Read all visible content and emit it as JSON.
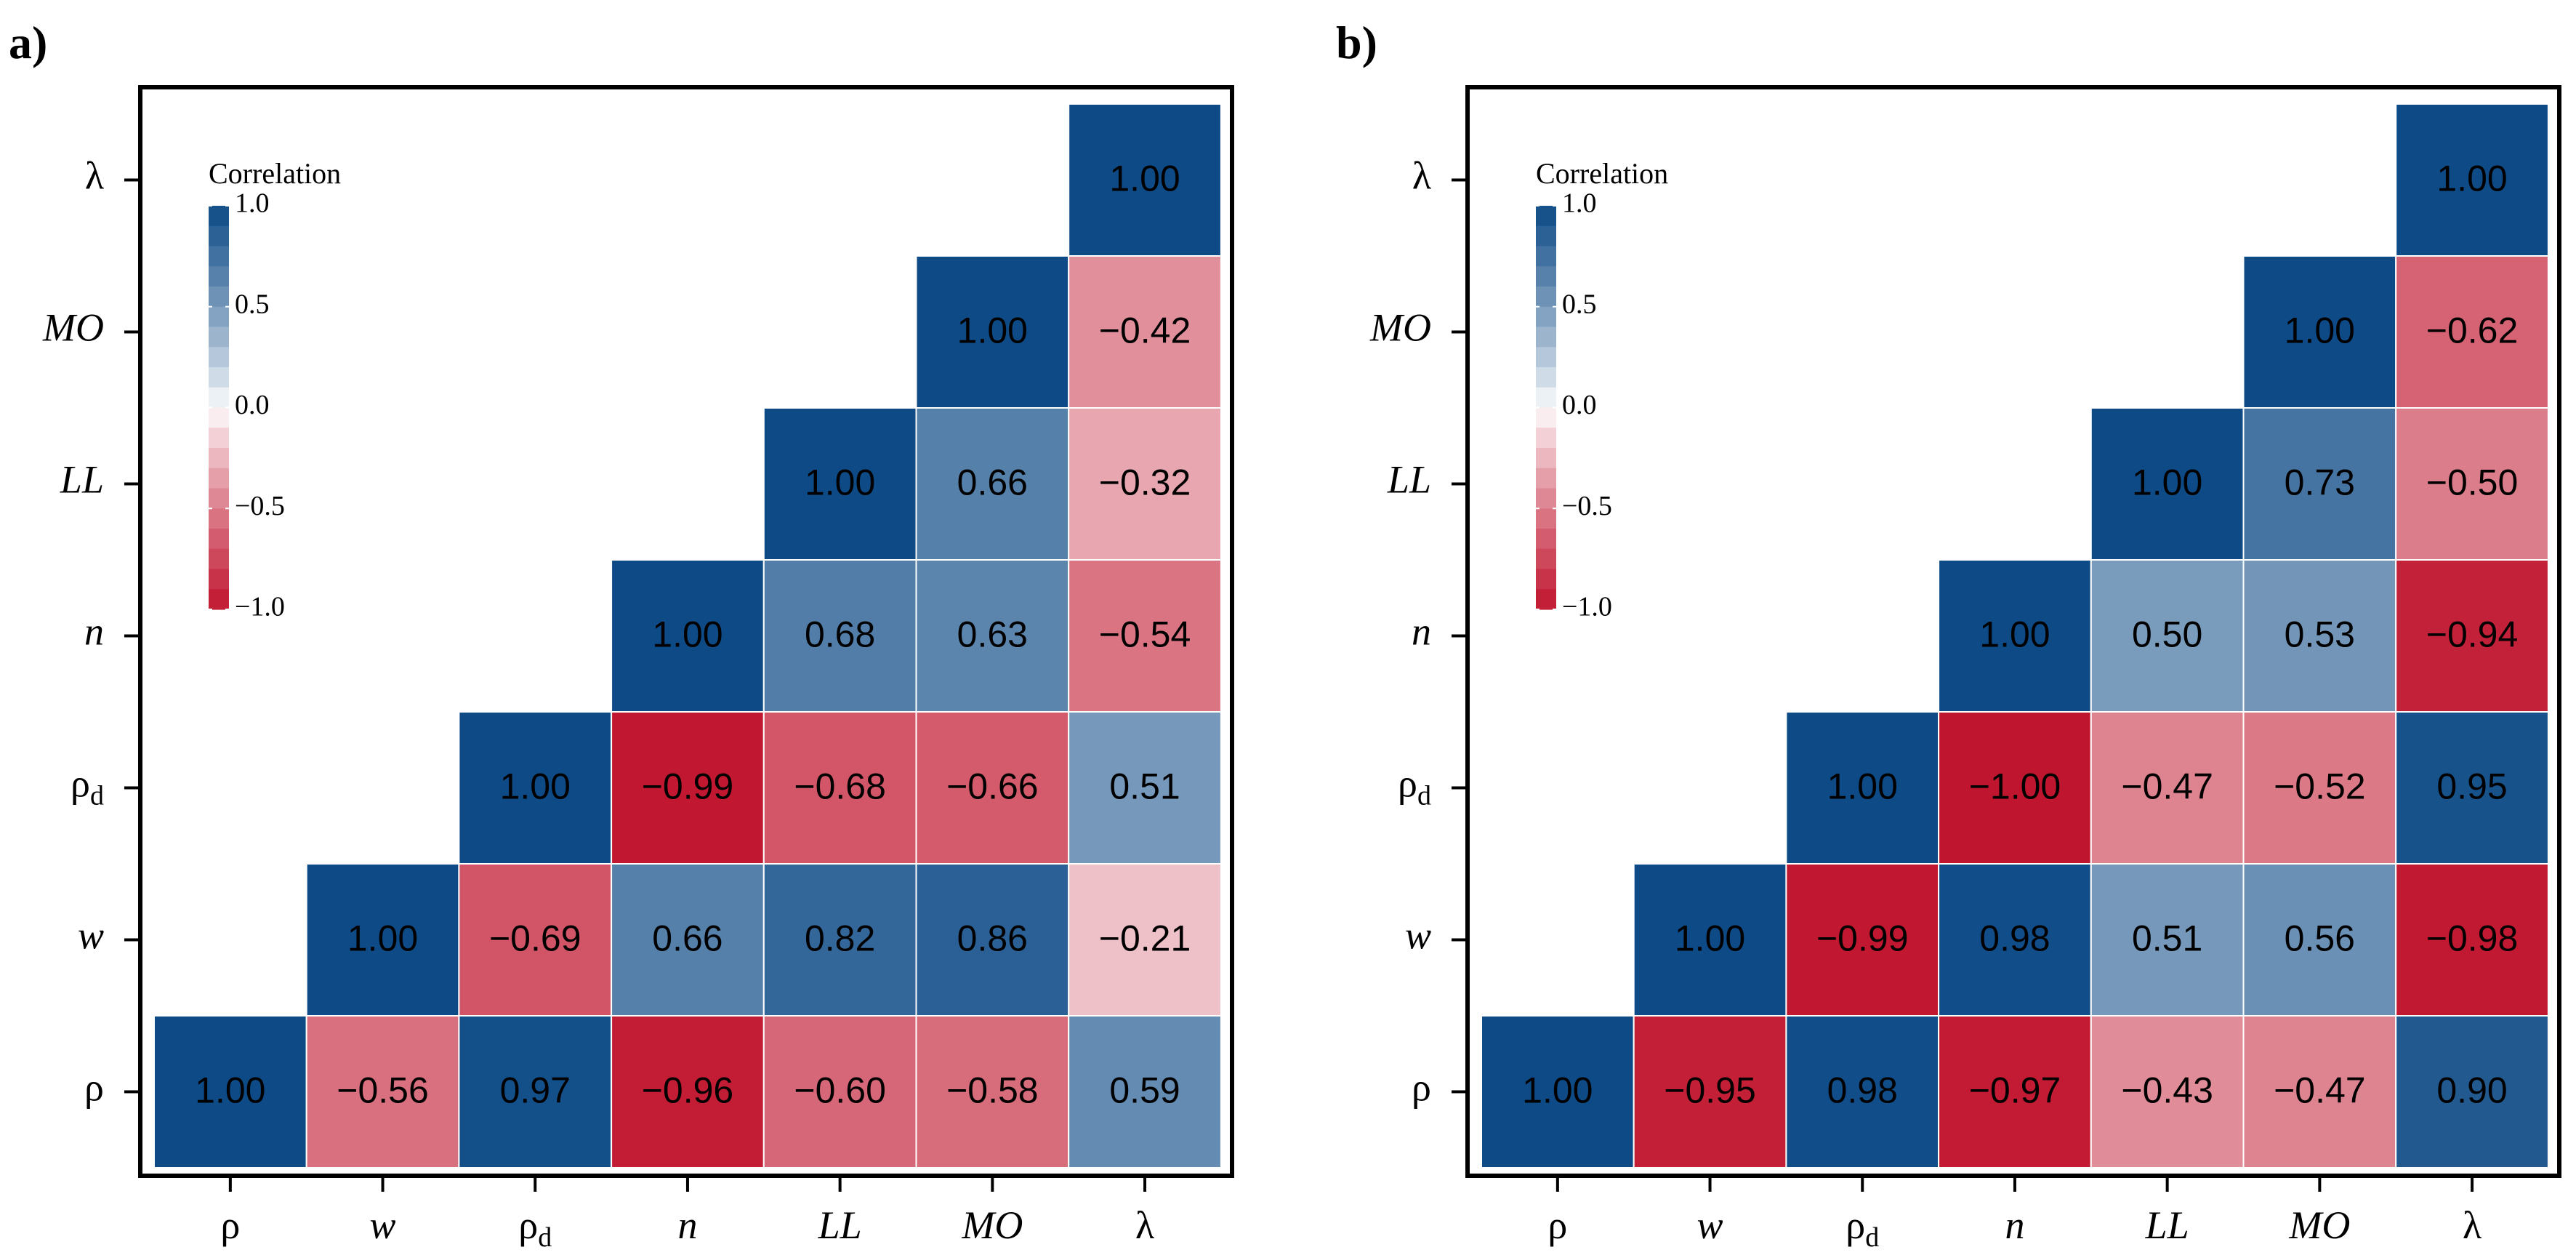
{
  "chart_data": [
    {
      "type": "heatmap",
      "panel_label": "a)",
      "title": "",
      "variables": [
        {
          "symbol": "ρ",
          "sub": "",
          "italic": false
        },
        {
          "symbol": "w",
          "sub": "",
          "italic": true
        },
        {
          "symbol": "ρ",
          "sub": "d",
          "italic": false
        },
        {
          "symbol": "n",
          "sub": "",
          "italic": true
        },
        {
          "symbol": "LL",
          "sub": "",
          "italic": true
        },
        {
          "symbol": "MO",
          "sub": "",
          "italic": true
        },
        {
          "symbol": "λ",
          "sub": "",
          "italic": false
        }
      ],
      "matrix": [
        [
          1.0,
          -0.56,
          0.97,
          -0.96,
          -0.6,
          -0.58,
          0.59
        ],
        [
          null,
          1.0,
          -0.69,
          0.66,
          0.82,
          0.86,
          -0.21
        ],
        [
          null,
          null,
          1.0,
          -0.99,
          -0.68,
          -0.66,
          0.51
        ],
        [
          null,
          null,
          null,
          1.0,
          0.68,
          0.63,
          -0.54
        ],
        [
          null,
          null,
          null,
          null,
          1.0,
          0.66,
          -0.32
        ],
        [
          null,
          null,
          null,
          null,
          null,
          1.0,
          -0.42
        ],
        [
          null,
          null,
          null,
          null,
          null,
          null,
          1.0
        ]
      ],
      "labels": [
        [
          "1.00",
          "−0.56",
          "0.97",
          "−0.96",
          "−0.60",
          "−0.58",
          "0.59"
        ],
        [
          null,
          "1.00",
          "−0.69",
          "0.66",
          "0.82",
          "0.86",
          "−0.21"
        ],
        [
          null,
          null,
          "1.00",
          "−0.99",
          "−0.68",
          "−0.66",
          "0.51"
        ],
        [
          null,
          null,
          null,
          "1.00",
          "0.68",
          "0.63",
          "−0.54"
        ],
        [
          null,
          null,
          null,
          null,
          "1.00",
          "0.66",
          "−0.32"
        ],
        [
          null,
          null,
          null,
          null,
          null,
          "1.00",
          "−0.42"
        ],
        [
          null,
          null,
          null,
          null,
          null,
          null,
          "1.00"
        ]
      ],
      "legend": {
        "title": "Correlation",
        "ticks": [
          "1.0",
          "0.5",
          "0.0",
          "−0.5",
          "−1.0"
        ],
        "tick_values": [
          1.0,
          0.5,
          0.0,
          -0.5,
          -1.0
        ],
        "range": [
          -1,
          1
        ],
        "placement": "top-left"
      }
    },
    {
      "type": "heatmap",
      "panel_label": "b)",
      "title": "",
      "variables": [
        {
          "symbol": "ρ",
          "sub": "",
          "italic": false
        },
        {
          "symbol": "w",
          "sub": "",
          "italic": true
        },
        {
          "symbol": "ρ",
          "sub": "d",
          "italic": false
        },
        {
          "symbol": "n",
          "sub": "",
          "italic": true
        },
        {
          "symbol": "LL",
          "sub": "",
          "italic": true
        },
        {
          "symbol": "MO",
          "sub": "",
          "italic": true
        },
        {
          "symbol": "λ",
          "sub": "",
          "italic": false
        }
      ],
      "matrix": [
        [
          1.0,
          -0.95,
          0.98,
          -0.97,
          -0.43,
          -0.47,
          0.9
        ],
        [
          null,
          1.0,
          -0.99,
          0.98,
          0.51,
          0.56,
          -0.98
        ],
        [
          null,
          null,
          1.0,
          -1.0,
          -0.47,
          -0.52,
          0.95
        ],
        [
          null,
          null,
          null,
          1.0,
          0.5,
          0.53,
          -0.94
        ],
        [
          null,
          null,
          null,
          null,
          1.0,
          0.73,
          -0.5
        ],
        [
          null,
          null,
          null,
          null,
          null,
          1.0,
          -0.62
        ],
        [
          null,
          null,
          null,
          null,
          null,
          null,
          1.0
        ]
      ],
      "labels": [
        [
          "1.00",
          "−0.95",
          "0.98",
          "−0.97",
          "−0.43",
          "−0.47",
          "0.90"
        ],
        [
          null,
          "1.00",
          "−0.99",
          "0.98",
          "0.51",
          "0.56",
          "−0.98"
        ],
        [
          null,
          null,
          "1.00",
          "−1.00",
          "−0.47",
          "−0.52",
          "0.95"
        ],
        [
          null,
          null,
          null,
          "1.00",
          "0.50",
          "0.53",
          "−0.94"
        ],
        [
          null,
          null,
          null,
          null,
          "1.00",
          "0.73",
          "−0.50"
        ],
        [
          null,
          null,
          null,
          null,
          null,
          "1.00",
          "−0.62"
        ],
        [
          null,
          null,
          null,
          null,
          null,
          null,
          "1.00"
        ]
      ],
      "legend": {
        "title": "Correlation",
        "ticks": [
          "1.0",
          "0.5",
          "0.0",
          "−0.5",
          "−1.0"
        ],
        "tick_values": [
          1.0,
          0.5,
          0.0,
          -0.5,
          -1.0
        ],
        "range": [
          -1,
          1
        ],
        "placement": "top-left"
      }
    }
  ],
  "colors": {
    "negative_end": "#c0152e",
    "neutral": "#ffffff",
    "positive_end": "#0d4a86",
    "cell_border": "#ffffff",
    "frame": "#000000"
  }
}
